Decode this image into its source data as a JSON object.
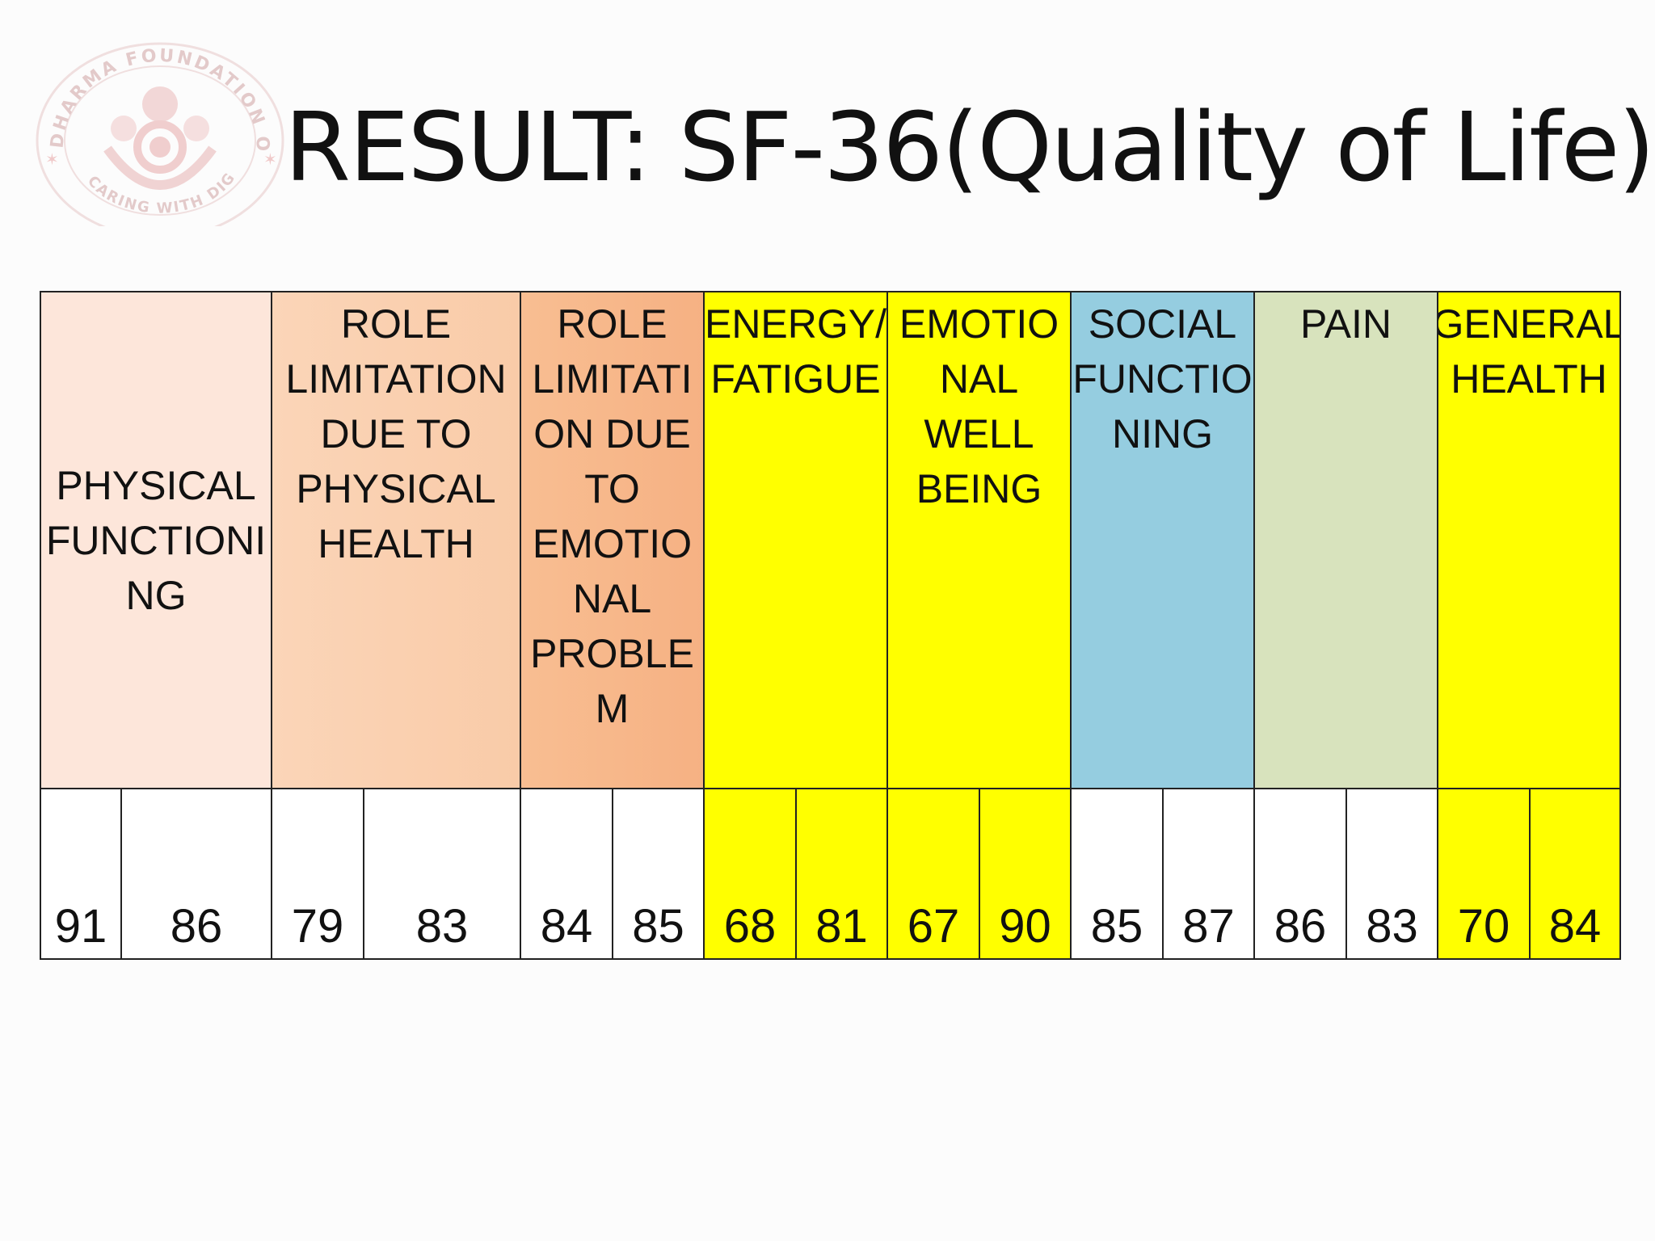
{
  "logo": {
    "top_text": "DHARMA FOUNDATION OF INDIA",
    "bottom_text": "CARING WITH DIGNITY",
    "color": "#d9a0a0"
  },
  "title": "RESULT: SF-36(Quality of Life)",
  "table": {
    "headers": [
      {
        "label": "PHYSICAL\nFUNCTIONI\nNG",
        "color": "#fde6da"
      },
      {
        "label": "ROLE\nLIMITATION\nDUE TO\nPHYSICAL\nHEALTH",
        "color": "#fbd5b8"
      },
      {
        "label": "ROLE\nLIMITATI\nON DUE\nTO\nEMOTIO\nNAL\nPROBLE\nM",
        "color": "#f8be92"
      },
      {
        "label": "ENERGY/\nFATIGUE",
        "color": "#ffff00"
      },
      {
        "label": "EMOTIO\nNAL\nWELL\nBEING",
        "color": "#ffff00"
      },
      {
        "label": "SOCIAL\nFUNCTIO\nNING",
        "color": "#95cde0"
      },
      {
        "label": "PAIN",
        "color": "#d8e3bd"
      },
      {
        "label": "GENERAL\nHEALTH",
        "color": "#ffff00"
      }
    ],
    "values": [
      {
        "v": "91",
        "color": "#ffffff"
      },
      {
        "v": "86",
        "color": "#ffffff"
      },
      {
        "v": "79",
        "color": "#ffffff"
      },
      {
        "v": "83",
        "color": "#ffffff"
      },
      {
        "v": "84",
        "color": "#ffffff"
      },
      {
        "v": "85",
        "color": "#ffffff"
      },
      {
        "v": "68",
        "color": "#ffff00"
      },
      {
        "v": "81",
        "color": "#ffff00"
      },
      {
        "v": "67",
        "color": "#ffff00"
      },
      {
        "v": "90",
        "color": "#ffff00"
      },
      {
        "v": "85",
        "color": "#ffffff"
      },
      {
        "v": "87",
        "color": "#ffffff"
      },
      {
        "v": "86",
        "color": "#ffffff"
      },
      {
        "v": "83",
        "color": "#ffffff"
      },
      {
        "v": "70",
        "color": "#ffff00"
      },
      {
        "v": "84",
        "color": "#ffff00"
      }
    ]
  }
}
